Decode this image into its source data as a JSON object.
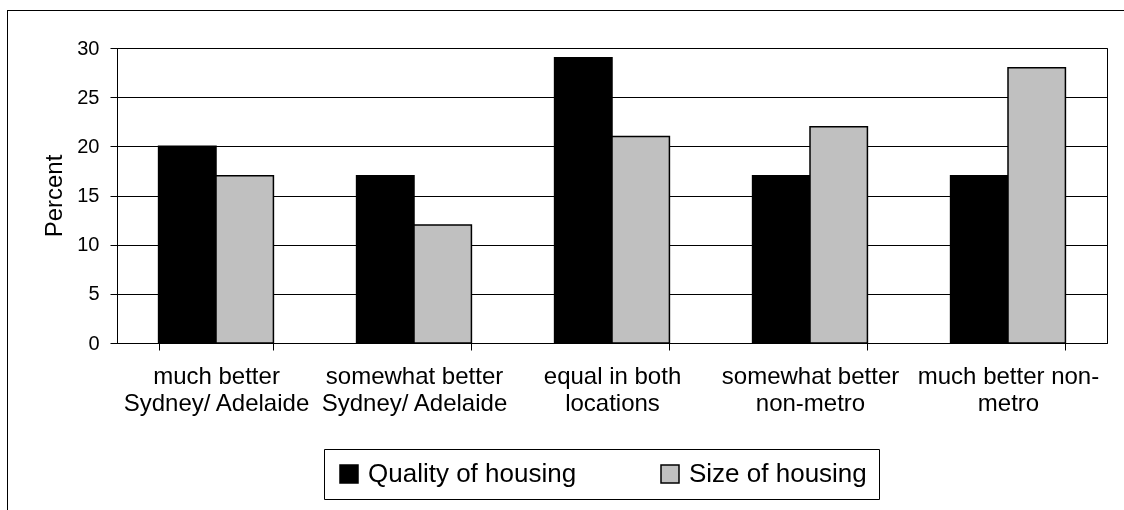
{
  "chart_data": {
    "type": "bar",
    "ylabel": "Percent",
    "categories": [
      "much better Sydney/ Adelaide",
      "somewhat better Sydney/ Adelaide",
      "equal in both locations",
      "somewhat better non-metro",
      "much better non-metro"
    ],
    "series": [
      {
        "name": "Quality of housing",
        "color": "#000000",
        "values": [
          20,
          17,
          29,
          17,
          17
        ]
      },
      {
        "name": "Size of housing",
        "color": "#c0c0c0",
        "values": [
          17,
          12,
          21,
          22,
          28
        ]
      }
    ],
    "ylim": [
      0,
      30
    ],
    "yticks": [
      0,
      5,
      10,
      15,
      20,
      25,
      30
    ],
    "grid": "y",
    "legend": "bottom"
  }
}
